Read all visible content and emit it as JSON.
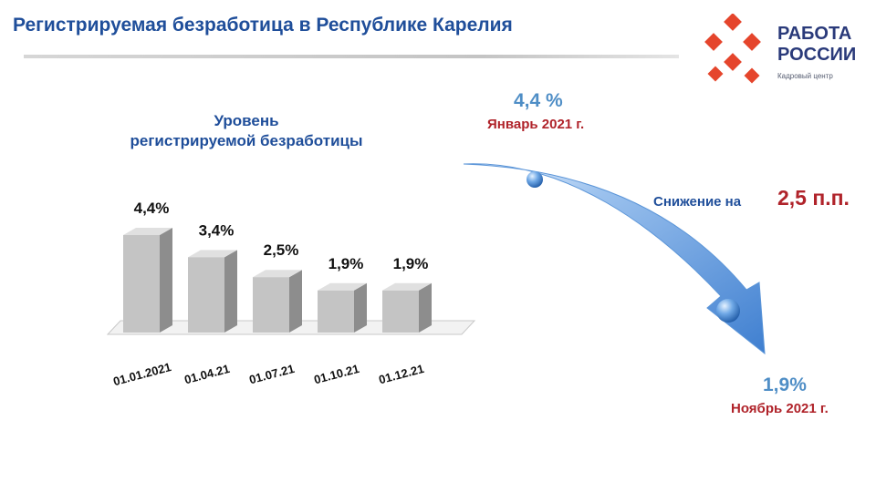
{
  "header": {
    "title": "Регистрируемая безработица в Республике Карелия"
  },
  "logo": {
    "name_line1": "РАБОТА",
    "name_line2": "РОССИИ",
    "subtitle": "Кадровый центр"
  },
  "chart_data": {
    "type": "bar",
    "title_line1": "Уровень",
    "title_line2": "регистрируемой безработицы",
    "categories": [
      "01.01.2021",
      "01.04.21",
      "01.07.21",
      "01.10.21",
      "01.12.21"
    ],
    "values": [
      4.4,
      3.4,
      2.5,
      1.9,
      1.9
    ],
    "value_labels": [
      "4,4%",
      "3,4%",
      "2,5%",
      "1,9%",
      "1,9%"
    ],
    "ylim": [
      0,
      5
    ],
    "grid": false,
    "colors": {
      "front": "#c4c4c4",
      "side": "#8d8d8d",
      "top": "#e0e0e0"
    }
  },
  "trend": {
    "start_value": "4,4 %",
    "start_date": "Январь 2021 г.",
    "decline_label": "Снижение на",
    "decline_value": "2,5 п.п.",
    "end_value": "1,9%",
    "end_date": "Ноябрь 2021 г.",
    "arrow_color": "#3f7fd0"
  }
}
